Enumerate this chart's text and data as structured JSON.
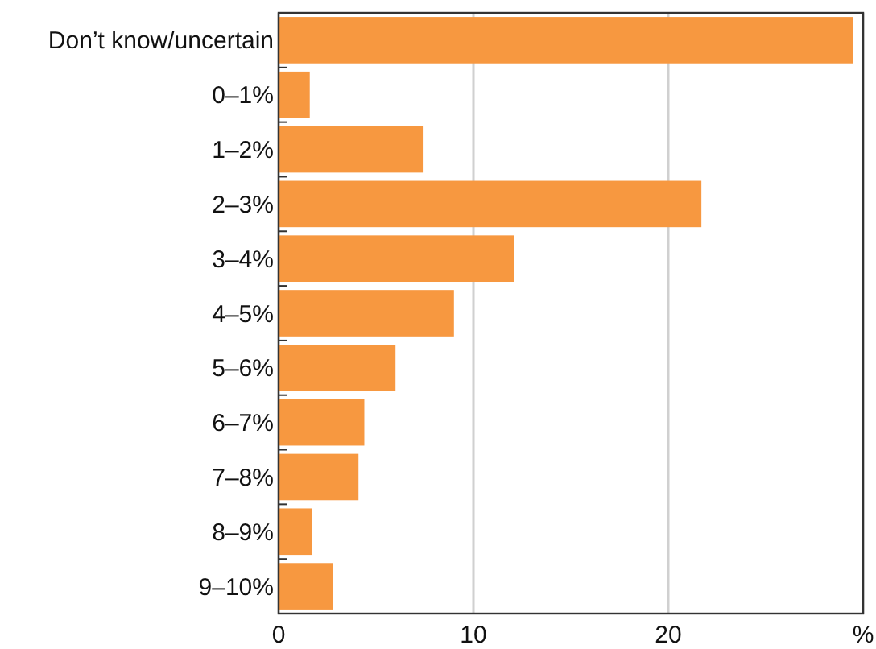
{
  "chart_data": {
    "type": "bar",
    "orientation": "horizontal",
    "categories": [
      "Don’t know/uncertain",
      "0–1%",
      "1–2%",
      "2–3%",
      "3–4%",
      "4–5%",
      "5–6%",
      "6–7%",
      "7–8%",
      "8–9%",
      "9–10%"
    ],
    "values": [
      29.5,
      1.6,
      7.4,
      21.7,
      12.1,
      9.0,
      6.0,
      4.4,
      4.1,
      1.7,
      2.8
    ],
    "color": "#f79840",
    "xlim": [
      0,
      30
    ],
    "xticks": [
      0,
      10,
      20,
      {
        "value": 30,
        "label": "%"
      }
    ],
    "grid": "x"
  }
}
